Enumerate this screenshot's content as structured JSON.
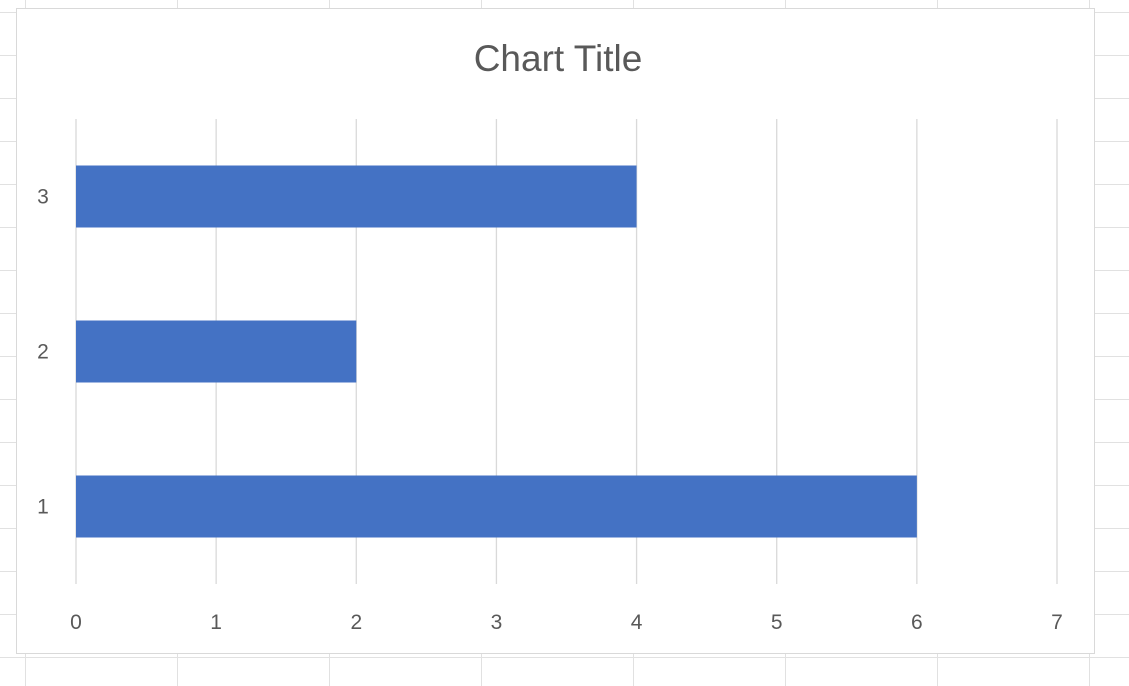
{
  "chart_data": {
    "type": "bar",
    "orientation": "horizontal",
    "title": "Chart Title",
    "categories": [
      "1",
      "2",
      "3"
    ],
    "values": [
      6,
      2,
      4
    ],
    "xlabel": "",
    "ylabel": "",
    "xlim": [
      0,
      7
    ],
    "x_ticks": [
      "0",
      "1",
      "2",
      "3",
      "4",
      "5",
      "6",
      "7"
    ],
    "grid": "vertical major gridlines",
    "legend": "none",
    "bar_color": "#4472c4"
  }
}
